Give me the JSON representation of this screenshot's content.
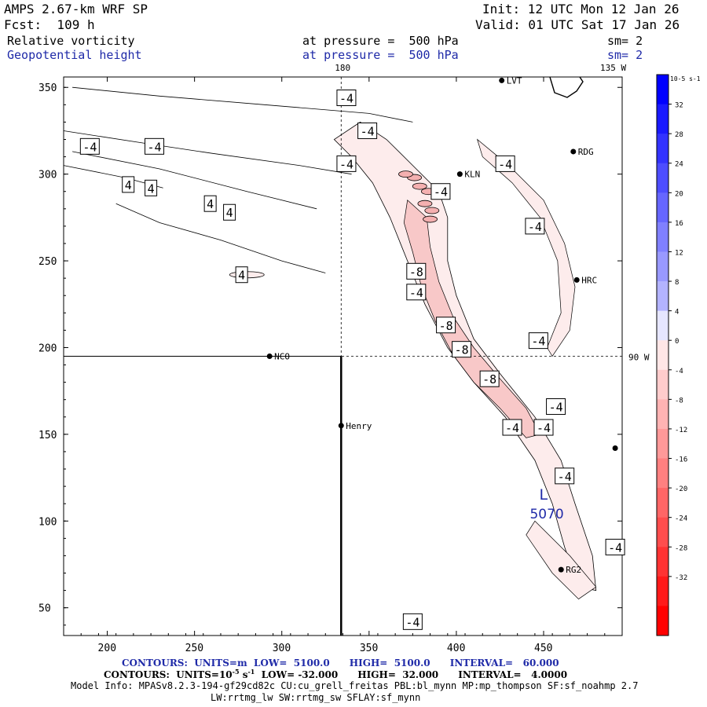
{
  "header": {
    "model": "AMPS 2.67-km WRF SP",
    "forecast": "Fcst:  109 h",
    "init": "Init: 12 UTC Mon 12 Jan 26",
    "valid": "Valid: 01 UTC Sat 17 Jan 26",
    "field1_name": "Relative vorticity",
    "field1_level": "at pressure =  500 hPa",
    "field1_sm": "sm= 2",
    "field2_name": "Geopotential height",
    "field2_level": "at pressure =  500 hPa",
    "field2_sm": "sm= 2"
  },
  "footer": {
    "contours1": "CONTOURS:  UNITS=m  LOW=  5100.0      HIGH=  5100.0      INTERVAL=   60.000",
    "contours2_a": "CONTOURS:  UNITS=10",
    "contours2_exp": "-5",
    "contours2_b": " s",
    "contours2_exp2": "-1",
    "contours2_c": "  LOW= -32.000      HIGH=  32.000      INTERVAL=   4.0000",
    "model_info": "Model Info: MPASv8.2.3-194-gf29cd82c CU:cu_grell_freitas PBL:bl_mynn MP:mp_thompson SF:sf_noahmp 2.7",
    "model_info2": "LW:rrtmg_lw SW:rrtmg_sw SFLAY:sf_mynn"
  },
  "colorbar": {
    "unit_label": "10",
    "unit_exp": "-5",
    "unit_tail": " s",
    "unit_exp2": "-1",
    "ticks": [
      "32",
      "28",
      "24",
      "20",
      "16",
      "12",
      "8",
      "4",
      "0",
      "-4",
      "-8",
      "-12",
      "-16",
      "-20",
      "-24",
      "-28",
      "-32"
    ],
    "colors": [
      "#0000ff",
      "#1a1aff",
      "#3333ff",
      "#4d4dff",
      "#6666ff",
      "#8080ff",
      "#9999ff",
      "#b3b3ff",
      "#e6e6ff",
      "#ffe6e6",
      "#ffcccc",
      "#ffb3b3",
      "#ff9999",
      "#ff8080",
      "#ff6666",
      "#ff4d4d",
      "#ff3333",
      "#ff1a1a",
      "#ff0000"
    ]
  },
  "chart_data": {
    "type": "contour-map",
    "x_ticks": [
      "200",
      "250",
      "300",
      "350",
      "400",
      "450"
    ],
    "y_ticks": [
      "350",
      "300",
      "250",
      "200",
      "150",
      "100",
      "50"
    ],
    "xlim": [
      175,
      495
    ],
    "ylim": [
      34,
      356
    ],
    "meridian_labels": {
      "top": "180",
      "top_right": "135 W",
      "right": "90 W"
    },
    "grid": "dashed meridian lines",
    "stations": [
      {
        "name": "LVT",
        "x": 426,
        "y": 354
      },
      {
        "name": "RDG",
        "x": 467,
        "y": 313
      },
      {
        "name": "KLN",
        "x": 402,
        "y": 300
      },
      {
        "name": "HRC",
        "x": 469,
        "y": 239
      },
      {
        "name": "NCO",
        "x": 293,
        "y": 195
      },
      {
        "name": "Henry",
        "x": 334,
        "y": 155
      },
      {
        "name": "RG2",
        "x": 460,
        "y": 72
      },
      {
        "name": "",
        "x": 491,
        "y": 142
      }
    ],
    "contour_labels": [
      {
        "text": "-4",
        "x": 337,
        "y": 344
      },
      {
        "text": "-4",
        "x": 349,
        "y": 325
      },
      {
        "text": "-4",
        "x": 190,
        "y": 316
      },
      {
        "text": "-4",
        "x": 227,
        "y": 316
      },
      {
        "text": "-4",
        "x": 337,
        "y": 306
      },
      {
        "text": "-4",
        "x": 428,
        "y": 306
      },
      {
        "text": "4",
        "x": 212,
        "y": 294
      },
      {
        "text": "4",
        "x": 225,
        "y": 292
      },
      {
        "text": "-4",
        "x": 391,
        "y": 290
      },
      {
        "text": "4",
        "x": 259,
        "y": 283
      },
      {
        "text": "4",
        "x": 270,
        "y": 278
      },
      {
        "text": "-4",
        "x": 445,
        "y": 270
      },
      {
        "text": "4",
        "x": 277,
        "y": 242
      },
      {
        "text": "-8",
        "x": 377,
        "y": 244
      },
      {
        "text": "-4",
        "x": 377,
        "y": 232
      },
      {
        "text": "-8",
        "x": 394,
        "y": 213
      },
      {
        "text": "-4",
        "x": 447,
        "y": 204
      },
      {
        "text": "-8",
        "x": 403,
        "y": 199
      },
      {
        "text": "-8",
        "x": 419,
        "y": 182
      },
      {
        "text": "-4",
        "x": 457,
        "y": 166
      },
      {
        "text": "-4",
        "x": 432,
        "y": 154
      },
      {
        "text": "-4",
        "x": 450,
        "y": 154
      },
      {
        "text": "-4",
        "x": 462,
        "y": 126
      },
      {
        "text": "-4",
        "x": 491,
        "y": 85
      },
      {
        "text": "-4",
        "x": 375,
        "y": 42
      }
    ],
    "low_center": {
      "label": "L",
      "value": "5070",
      "x": 452,
      "y": 116
    }
  }
}
